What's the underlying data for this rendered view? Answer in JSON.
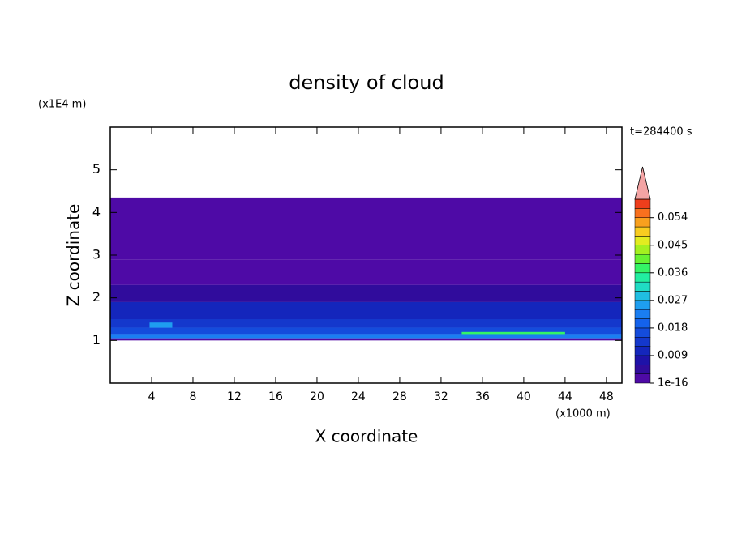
{
  "chart_data": {
    "type": "contour",
    "title": "density of cloud",
    "x_label": "X coordinate",
    "y_label": "Z coordinate",
    "x_unit": "(x1000 m)",
    "y_unit": "(x1E4 m)",
    "time_label": "t=284400 s",
    "xlim": [
      0,
      49.5
    ],
    "ylim": [
      0,
      6
    ],
    "xticks": [
      4,
      8,
      12,
      16,
      20,
      24,
      28,
      32,
      36,
      40,
      44,
      48
    ],
    "yticks": [
      1,
      2,
      3,
      4,
      5
    ],
    "colorbar": {
      "clim": [
        1e-16,
        0.06
      ],
      "ticks": [
        1e-16,
        0.009,
        0.018,
        0.027,
        0.036,
        0.045,
        0.054
      ],
      "colors": [
        "#4e0aa6",
        "#300c9c",
        "#1e12a8",
        "#1426bc",
        "#1438cc",
        "#144cdc",
        "#1462ec",
        "#1a7ef2",
        "#1e9ef0",
        "#20bee2",
        "#20dcc4",
        "#22eea0",
        "#34f466",
        "#66f232",
        "#a4f020",
        "#e2ec20",
        "#f8cc20",
        "#f8a01e",
        "#f8701e",
        "#ee3e1c"
      ],
      "over_color": "#f4a4a4"
    },
    "cells": [
      {
        "x": [
          0,
          49.5
        ],
        "z": [
          2.9,
          4.35
        ],
        "value": 1e-16
      },
      {
        "x": [
          0,
          49.5
        ],
        "z": [
          2.3,
          2.9
        ],
        "value": 0.003
      },
      {
        "x": [
          0,
          49.5
        ],
        "z": [
          1.9,
          2.3
        ],
        "value": 0.006
      },
      {
        "x": [
          0,
          49.5
        ],
        "z": [
          1.5,
          1.9
        ],
        "value": 0.012
      },
      {
        "x": [
          0,
          49.5
        ],
        "z": [
          1.3,
          1.5
        ],
        "value": 0.015
      },
      {
        "x": [
          0,
          49.5
        ],
        "z": [
          1.15,
          1.3
        ],
        "value": 0.018
      },
      {
        "x": [
          0,
          49.5
        ],
        "z": [
          1.05,
          1.15
        ],
        "value": 0.024
      },
      {
        "x": [
          0,
          49.5
        ],
        "z": [
          1.0,
          1.05
        ],
        "value": 0.003
      },
      {
        "x": [
          34,
          44
        ],
        "z": [
          1.15,
          1.2
        ],
        "value": 0.039
      },
      {
        "x": [
          3.8,
          6
        ],
        "z": [
          1.3,
          1.42
        ],
        "value": 0.027
      }
    ]
  }
}
